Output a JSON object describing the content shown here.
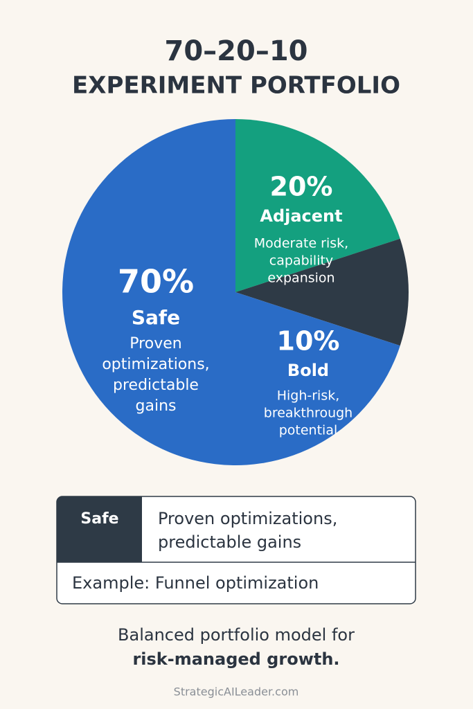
{
  "chart_data": {
    "type": "pie",
    "title": "70–20–10",
    "subtitle": "EXPERIMENT PORTFOLIO",
    "categories": [
      "Safe",
      "Adjacent",
      "Bold"
    ],
    "values": [
      70,
      20,
      10
    ],
    "value_labels": [
      "70%",
      "20%",
      "10%"
    ],
    "descriptions": [
      [
        "Proven",
        "optimizations,",
        "predictable",
        "gains"
      ],
      [
        "Moderate risk,",
        "capability",
        "expansion"
      ],
      [
        "High-risk,",
        "breakthrough",
        "potential"
      ]
    ],
    "colors": [
      "#2a6cc6",
      "#14a07f",
      "#2e3a46"
    ]
  },
  "table": {
    "label": "Safe",
    "description": [
      "Proven optimizations,",
      "predictable gains"
    ],
    "example": "Example: Funnel optimization"
  },
  "footer": {
    "tagline": [
      "Balanced portfolio model for",
      "risk-managed growth."
    ],
    "site": "StrategicAILeader.com"
  }
}
